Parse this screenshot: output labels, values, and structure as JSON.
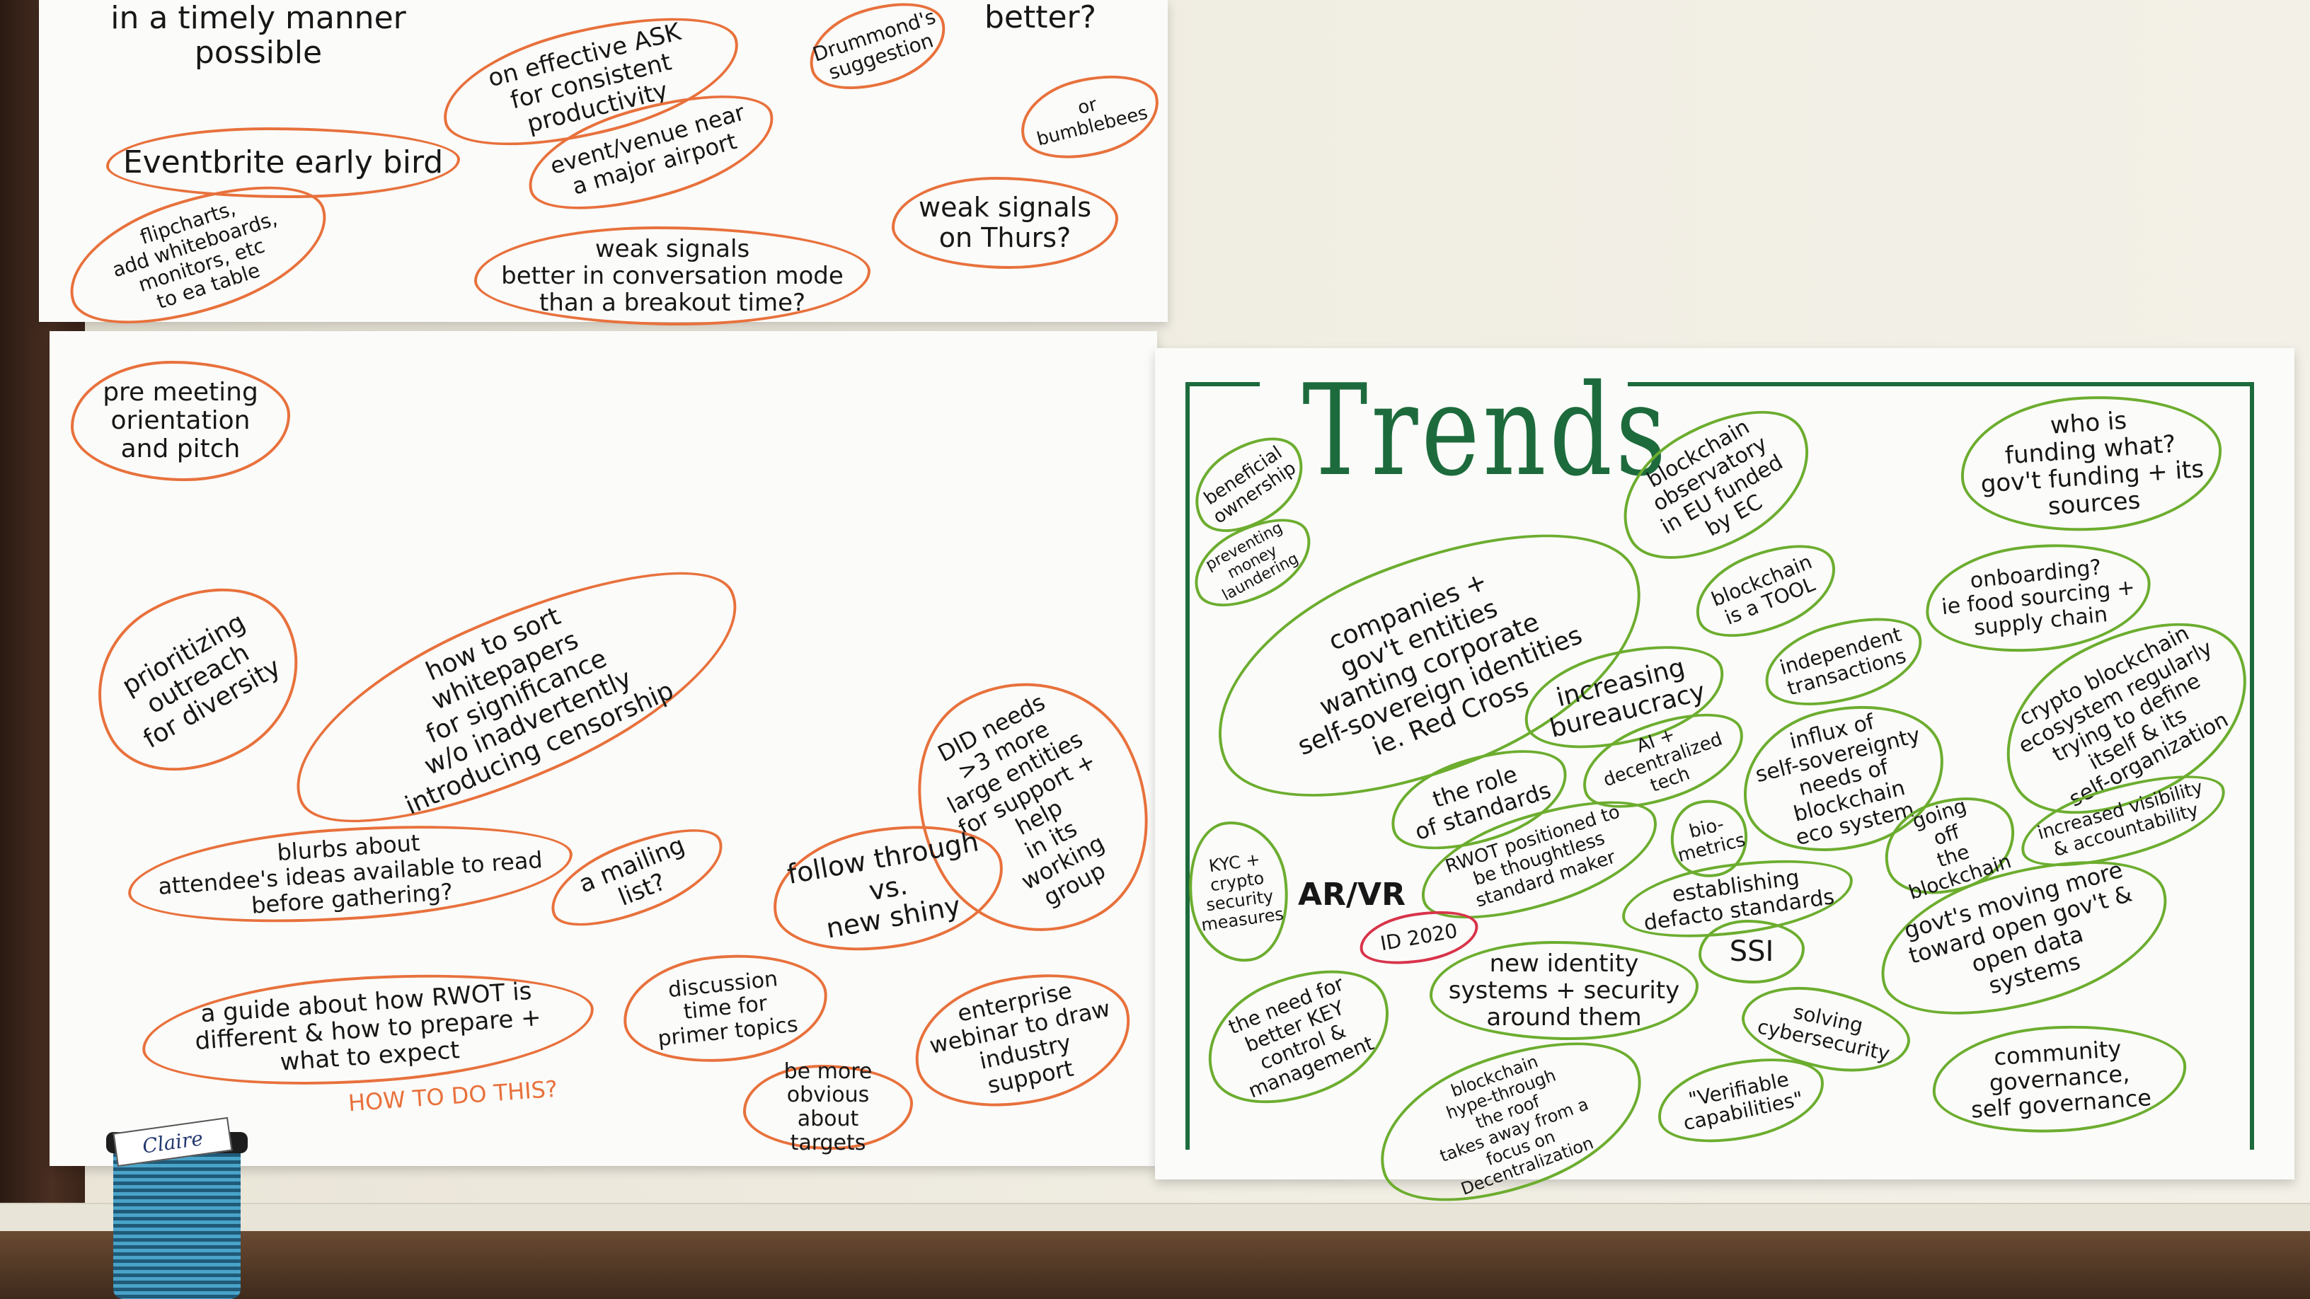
{
  "top_sheet": {
    "notes": [
      "in a timely manner\npossible",
      "on effective ASK\nfor consistent productivity",
      "Drummond's\nsuggestion",
      "better?",
      "or\nbumblebees",
      "Eventbrite early bird",
      "event/venue near\na major airport",
      "flipcharts,\nadd whiteboards,\nmonitors, etc\nto ea table",
      "weak signals\non Thurs?",
      "weak signals\nbetter in conversation mode\nthan a breakout time?"
    ]
  },
  "left_sheet": {
    "notes": [
      "pre meeting\norientation\nand pitch",
      "prioritizing\noutreach\nfor diversity",
      "how to sort\nwhitepapers\nfor significance\nw/o inadvertently\nintroducing censorship",
      "DID needs\n>3 more\nlarge entities\nfor support +\nhelp\nin its\nworking\ngroup",
      "blurbs about\nattendee's ideas available to read\nbefore gathering?",
      "a mailing list?",
      "follow through\nvs.\nnew shiny",
      "a guide about how RWOT is\ndifferent & how to prepare +\nwhat to expect",
      "HOW TO DO THIS?",
      "discussion\ntime for\nprimer topics",
      "enterprise\nwebinar to draw\nindustry\nsupport",
      "be more\nobvious about\ntargets"
    ]
  },
  "right_sheet": {
    "title": "Trends",
    "notes": [
      "beneficial\nownership",
      "preventing\nmoney\nlaundering",
      "blockchain\nobservatory\nin EU funded\nby EC",
      "who is\nfunding what?\ngov't funding + its\nsources",
      "companies +\ngov't entities\nwanting corporate\nself-sovereign identities\nie. Red Cross",
      "blockchain\nis a TOOL",
      "onboarding?\nie food sourcing +\nsupply chain",
      "independent\ntransactions",
      "increasing\nbureaucracy",
      "crypto blockchain\necosystem regularly\ntrying to define\nitself & its\nself-organization",
      "influx of\nself-sovereignty\nneeds of\nblockchain\neco system",
      "AI +\ndecentralized\ntech",
      "the role\nof standards",
      "KYC +\ncrypto\nsecurity\nmeasures",
      "AR/VR",
      "RWOT positioned to\nbe thoughtless\nstandard maker",
      "bio-\nmetrics",
      "going\noff\nthe\nblockchain",
      "increased visibility\n& accountability",
      "ID 2020",
      "establishing\ndefacto standards",
      "govt's moving more\ntoward open gov't &\nopen data\nsystems",
      "SSI",
      "new identity\nsystems + security\naround them",
      "the need for\nbetter KEY\ncontrol &\nmanagement",
      "solving\ncybersecurity",
      "community\ngovernance,\nself governance",
      "blockchain\nhype-through\nthe roof\ntakes away from a\nfocus on\nDecentralization",
      "\"Verifiable\ncapabilities\""
    ]
  },
  "cup": {
    "label": "Claire"
  },
  "colors": {
    "orange_outline": "#e8713c",
    "green_outline": "#6cad2f",
    "title_green": "#1d6b3c"
  }
}
